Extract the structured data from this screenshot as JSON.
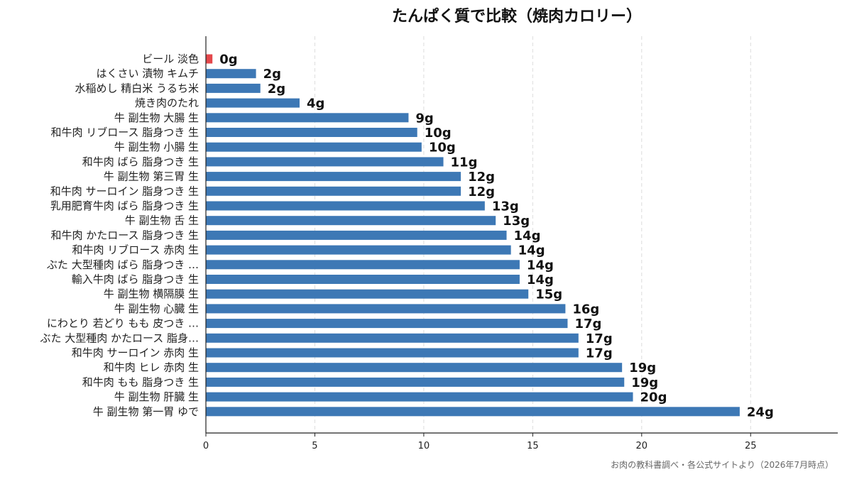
{
  "chart_data": {
    "type": "bar",
    "orientation": "horizontal",
    "title": "たんぱく質で比較（焼肉カロリー）",
    "xlabel": "",
    "ylabel": "",
    "xlim": [
      0,
      29
    ],
    "xticks": [
      0,
      5,
      10,
      15,
      20,
      25
    ],
    "grid": "vertical dashed",
    "categories": [
      "ビール 淡色",
      "はくさい 漬物 キムチ",
      "水稲めし 精白米 うるち米",
      "焼き肉のたれ",
      "牛 副生物 大腸 生",
      "和牛肉 リブロース 脂身つき 生",
      "牛 副生物 小腸 生",
      "和牛肉 ばら 脂身つき 生",
      "牛 副生物 第三胃 生",
      "和牛肉 サーロイン 脂身つき 生",
      "乳用肥育牛肉 ばら 脂身つき 生",
      "牛 副生物 舌 生",
      "和牛肉 かたロース 脂身つき 生",
      "和牛肉 リブロース 赤肉 生",
      "ぶた 大型種肉 ばら 脂身つき …",
      "輸入牛肉 ばら 脂身つき 生",
      "牛 副生物 横隔膜 生",
      "牛 副生物 心臓 生",
      "にわとり 若どり もも 皮つき …",
      "ぶた 大型種肉 かたロース 脂身…",
      "和牛肉 サーロイン 赤肉 生",
      "和牛肉 ヒレ 赤肉 生",
      "和牛肉 もも 脂身つき 生",
      "牛 副生物 肝臓 生",
      "牛 副生物 第一胃 ゆで"
    ],
    "values": [
      0.3,
      2.3,
      2.5,
      4.3,
      9.3,
      9.7,
      9.9,
      10.9,
      11.7,
      11.7,
      12.8,
      13.3,
      13.8,
      14.0,
      14.4,
      14.4,
      14.8,
      16.5,
      16.6,
      17.1,
      17.1,
      19.1,
      19.2,
      19.6,
      24.5
    ],
    "value_labels": [
      "0g",
      "2g",
      "2g",
      "4g",
      "9g",
      "10g",
      "10g",
      "11g",
      "12g",
      "12g",
      "13g",
      "13g",
      "14g",
      "14g",
      "14g",
      "14g",
      "15g",
      "16g",
      "17g",
      "17g",
      "17g",
      "19g",
      "19g",
      "20g",
      "24g"
    ],
    "highlight_index": 0,
    "colors": {
      "bar": "#3d78b5",
      "highlight": "#e4474b",
      "grid": "#dcdcdc",
      "axis": "#222222"
    }
  },
  "source_note": "お肉の教科書調べ・各公式サイトより（2026年7月時点）"
}
